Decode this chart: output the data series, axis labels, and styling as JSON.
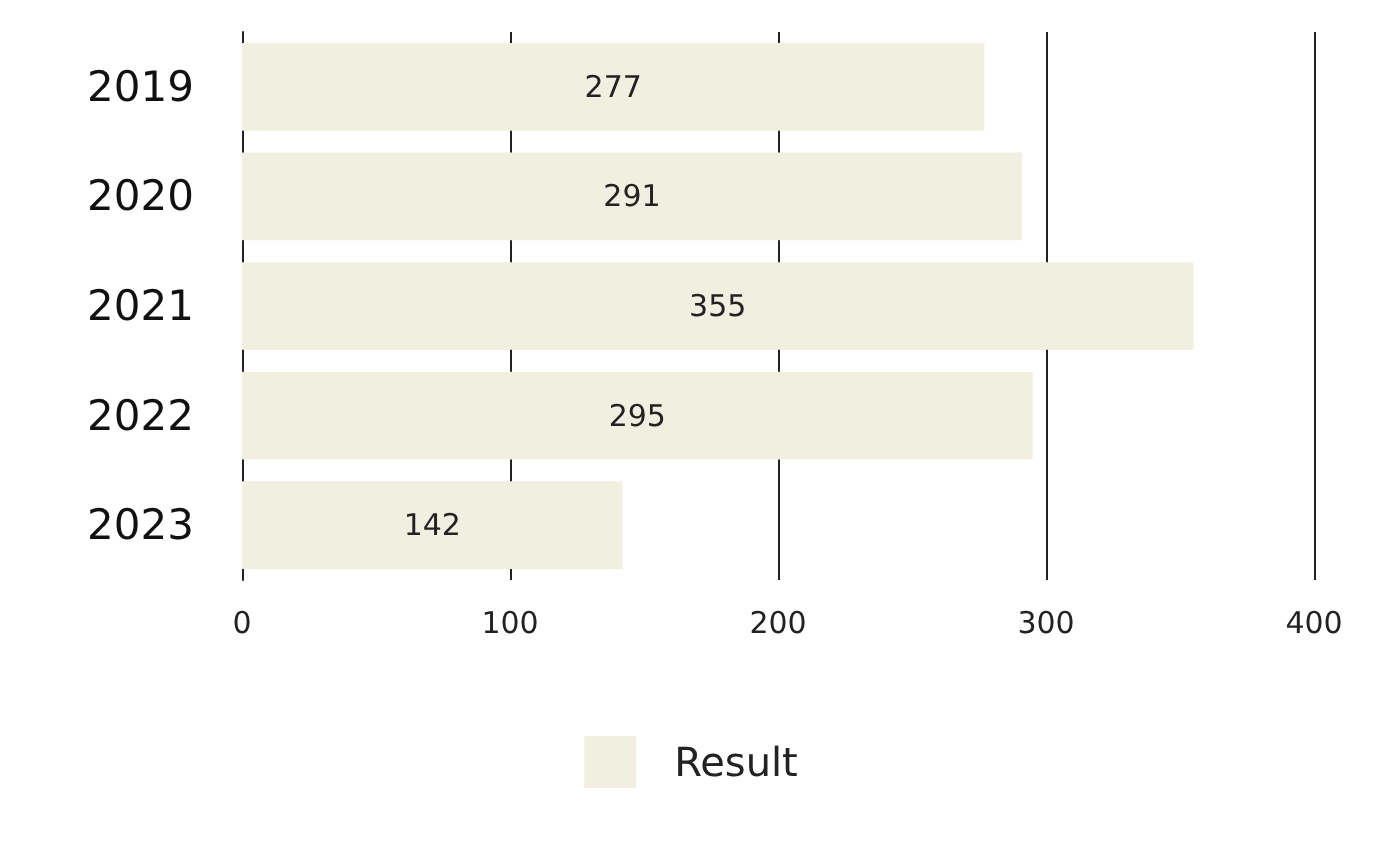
{
  "chart_data": {
    "type": "bar",
    "orientation": "horizontal",
    "categories": [
      "2019",
      "2020",
      "2021",
      "2022",
      "2023"
    ],
    "series": [
      {
        "name": "Result",
        "color": "#f1efe0",
        "values": [
          277,
          291,
          355,
          295,
          142
        ]
      }
    ],
    "xlim": [
      0,
      400
    ],
    "xticks": [
      0,
      100,
      200,
      300,
      400
    ],
    "grid": "x",
    "legend": "bottom",
    "data_labels": true
  }
}
